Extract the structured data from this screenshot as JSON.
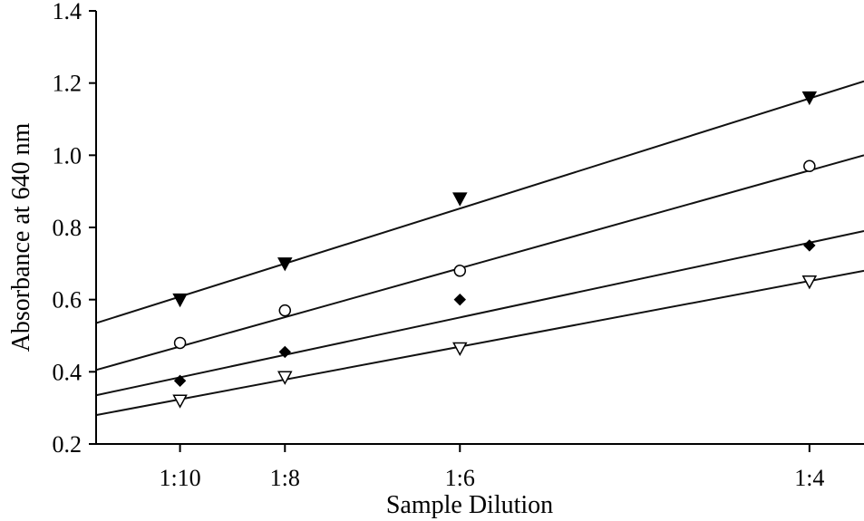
{
  "chart_data": {
    "type": "scatter",
    "title": "",
    "xlabel": "Sample Dilution",
    "ylabel": "Absorbance at 640 nm",
    "ylim": [
      0.2,
      1.4
    ],
    "yticks": [
      "0.2",
      "0.4",
      "0.6",
      "0.8",
      "1.0",
      "1.2",
      "1.4"
    ],
    "xlim": [
      0.08,
      0.263
    ],
    "x_categories": [
      {
        "label": "1:10",
        "value": 0.1
      },
      {
        "label": "1:8",
        "value": 0.125
      },
      {
        "label": "1:6",
        "value": 0.1667
      },
      {
        "label": "1:4",
        "value": 0.25
      }
    ],
    "grid": false,
    "legend": "none",
    "series": [
      {
        "marker": "filled-triangle-down",
        "points": [
          {
            "x": 0.1,
            "y": 0.6
          },
          {
            "x": 0.125,
            "y": 0.7
          },
          {
            "x": 0.1667,
            "y": 0.88
          },
          {
            "x": 0.25,
            "y": 1.16
          }
        ],
        "fit": [
          [
            0.08,
            0.535
          ],
          [
            0.263,
            1.205
          ]
        ]
      },
      {
        "marker": "open-circle",
        "points": [
          {
            "x": 0.1,
            "y": 0.48
          },
          {
            "x": 0.125,
            "y": 0.57
          },
          {
            "x": 0.1667,
            "y": 0.68
          },
          {
            "x": 0.25,
            "y": 0.97
          }
        ],
        "fit": [
          [
            0.08,
            0.405
          ],
          [
            0.263,
            1.0
          ]
        ]
      },
      {
        "marker": "filled-diamond",
        "points": [
          {
            "x": 0.1,
            "y": 0.375
          },
          {
            "x": 0.125,
            "y": 0.455
          },
          {
            "x": 0.1667,
            "y": 0.6
          },
          {
            "x": 0.25,
            "y": 0.75
          }
        ],
        "fit": [
          [
            0.08,
            0.335
          ],
          [
            0.263,
            0.79
          ]
        ]
      },
      {
        "marker": "open-triangle-down",
        "points": [
          {
            "x": 0.1,
            "y": 0.32
          },
          {
            "x": 0.125,
            "y": 0.385
          },
          {
            "x": 0.1667,
            "y": 0.465
          },
          {
            "x": 0.25,
            "y": 0.65
          }
        ],
        "fit": [
          [
            0.08,
            0.28
          ],
          [
            0.263,
            0.68
          ]
        ]
      }
    ]
  }
}
